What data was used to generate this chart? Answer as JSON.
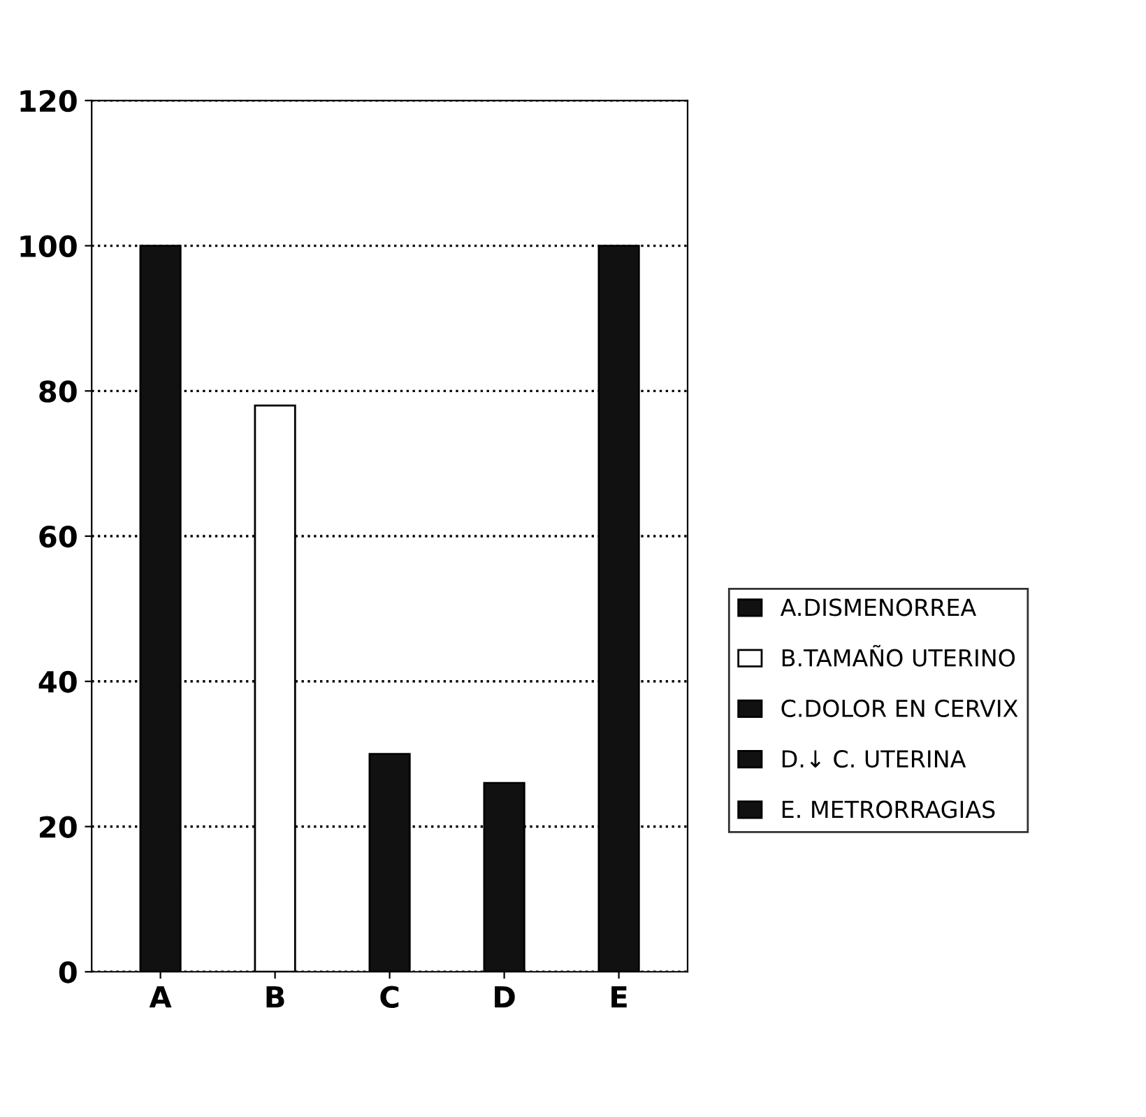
{
  "chart_data": {
    "type": "bar",
    "categories": [
      "A",
      "B",
      "C",
      "D",
      "E"
    ],
    "series": [
      {
        "name": "A.DISMENORREA",
        "color": "#111111",
        "values": [
          100,
          null,
          null,
          null,
          null
        ]
      },
      {
        "name": "B.TAMAÑO UTERINO",
        "color": "#ffffff",
        "values": [
          null,
          78,
          null,
          null,
          null
        ]
      },
      {
        "name": "C.DOLOR EN CERVIX",
        "color": "#111111",
        "values": [
          null,
          null,
          30,
          null,
          null
        ]
      },
      {
        "name": "D.↓ C. UTERINA",
        "color": "#111111",
        "values": [
          null,
          null,
          null,
          26,
          null
        ]
      },
      {
        "name": "E. METRORRAGIAS",
        "color": "#111111",
        "values": [
          null,
          null,
          null,
          null,
          100
        ]
      }
    ],
    "ylim": [
      0,
      120
    ],
    "yticks": [
      0,
      20,
      40,
      60,
      80,
      100,
      120
    ],
    "grid": "y",
    "line_style": "dotted",
    "legend": "right"
  }
}
